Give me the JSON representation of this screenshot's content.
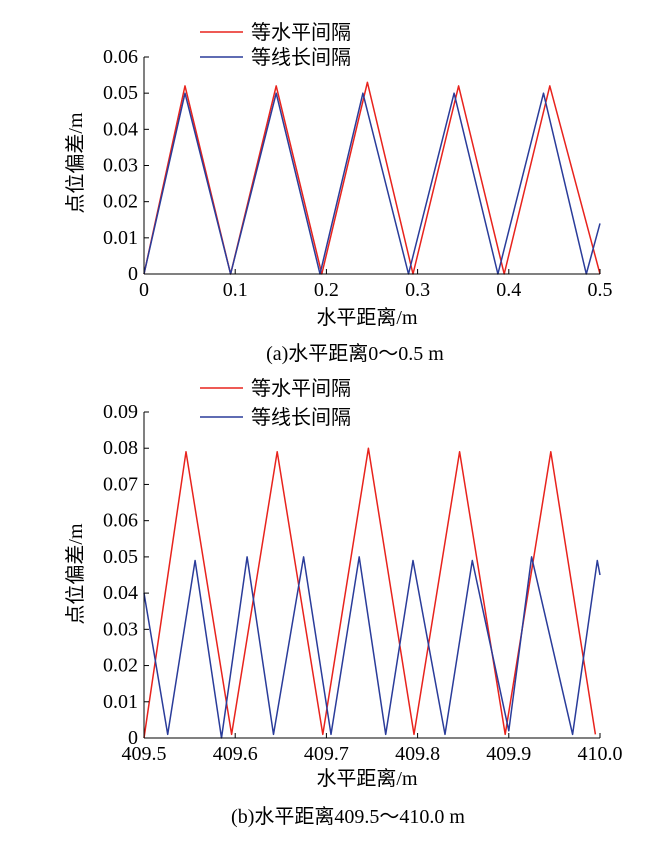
{
  "chart_data": [
    {
      "type": "line",
      "caption": "(a)水平距离0～0.5 m",
      "xlabel": "水平距离/m",
      "ylabel": "点位偏差/m",
      "xlim": [
        0,
        0.5
      ],
      "ylim": [
        0,
        0.06
      ],
      "xticks": [
        "0",
        "0.1",
        "0.2",
        "0.3",
        "0.4",
        "0.5"
      ],
      "yticks": [
        "0",
        "0.01",
        "0.02",
        "0.03",
        "0.04",
        "0.05",
        "0.06"
      ],
      "legend_position": "top",
      "grid": false,
      "series": [
        {
          "name": "等水平间隔",
          "color": "#e8231d",
          "x": [
            0,
            0.045,
            0.095,
            0.145,
            0.195,
            0.245,
            0.295,
            0.345,
            0.395,
            0.445,
            0.5
          ],
          "y": [
            0,
            0.052,
            0,
            0.052,
            0,
            0.053,
            0,
            0.052,
            0,
            0.052,
            0
          ]
        },
        {
          "name": "等线长间隔",
          "color": "#2a3c9a",
          "x": [
            0,
            0.045,
            0.095,
            0.145,
            0.193,
            0.24,
            0.29,
            0.34,
            0.388,
            0.438,
            0.485,
            0.5
          ],
          "y": [
            0,
            0.05,
            0,
            0.05,
            0,
            0.05,
            0,
            0.05,
            0,
            0.05,
            0,
            0.014
          ]
        }
      ]
    },
    {
      "type": "line",
      "caption": "(b)水平距离409.5～410.0 m",
      "xlabel": "水平距离/m",
      "ylabel": "点位偏差/m",
      "xlim": [
        409.5,
        410.0
      ],
      "ylim": [
        0,
        0.09
      ],
      "xticks": [
        "409.5",
        "409.6",
        "409.7",
        "409.8",
        "409.9",
        "410.0"
      ],
      "yticks": [
        "0",
        "0.01",
        "0.02",
        "0.03",
        "0.04",
        "0.05",
        "0.06",
        "0.07",
        "0.08",
        "0.09"
      ],
      "legend_position": "top",
      "grid": false,
      "series": [
        {
          "name": "等水平间隔",
          "color": "#e8231d",
          "x": [
            409.5,
            409.546,
            409.596,
            409.646,
            409.696,
            409.746,
            409.796,
            409.846,
            409.896,
            409.946,
            409.995
          ],
          "y": [
            0,
            0.079,
            0.001,
            0.079,
            0.001,
            0.08,
            0.001,
            0.079,
            0.001,
            0.079,
            0.001
          ]
        },
        {
          "name": "等线长间隔",
          "color": "#2a3c9a",
          "x": [
            409.5,
            409.526,
            409.556,
            409.585,
            409.613,
            409.642,
            409.675,
            409.705,
            409.736,
            409.765,
            409.795,
            409.83,
            409.86,
            409.9,
            409.925,
            409.97,
            409.997,
            410.0
          ],
          "y": [
            0.04,
            0.001,
            0.049,
            0,
            0.05,
            0.001,
            0.05,
            0.001,
            0.05,
            0.001,
            0.049,
            0.001,
            0.049,
            0.002,
            0.05,
            0.001,
            0.049,
            0.045
          ]
        }
      ]
    }
  ]
}
